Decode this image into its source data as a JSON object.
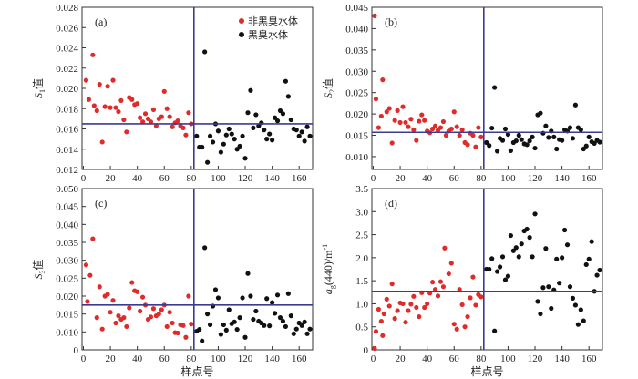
{
  "legend": {
    "red_label": "非黑臭水体",
    "black_label": "黑臭水体",
    "red_color": "#e02b2b",
    "black_color": "#111111",
    "placement": "top-right of panel (a)"
  },
  "colors": {
    "reference_line": "#3b3b8f",
    "axis": "#333333"
  },
  "chart_data": [
    {
      "type": "scatter",
      "panel_label": "(a)",
      "ylabel": {
        "base": "S",
        "sub": "1",
        "suffix": "值"
      },
      "xlabel": "",
      "xlim": [
        -1,
        170
      ],
      "ylim": [
        0.012,
        0.028
      ],
      "xticks": [
        0,
        20,
        40,
        60,
        80,
        100,
        120,
        140,
        160
      ],
      "yticks": [
        0.012,
        0.014,
        0.016,
        0.018,
        0.02,
        0.022,
        0.024,
        0.026,
        0.028
      ],
      "ytick_labels": [
        "0.012",
        "0.014",
        "0.016",
        "0.018",
        "0.020",
        "0.022",
        "0.024",
        "0.026",
        "0.028"
      ],
      "vline": 82,
      "hline": 0.0165,
      "series": [
        {
          "name": "非黑臭水体",
          "color": "#e02b2b",
          "x": [
            2,
            4,
            7,
            8,
            10,
            12,
            14,
            16,
            18,
            20,
            22,
            24,
            26,
            28,
            30,
            32,
            34,
            36,
            38,
            40,
            42,
            44,
            46,
            48,
            50,
            52,
            54,
            56,
            58,
            60,
            62,
            64,
            66,
            68,
            70,
            72,
            74,
            76,
            78,
            80
          ],
          "y": [
            0.0208,
            0.0189,
            0.0233,
            0.0183,
            0.0178,
            0.0204,
            0.0147,
            0.0182,
            0.0202,
            0.0181,
            0.0208,
            0.0181,
            0.0177,
            0.0188,
            0.0169,
            0.0157,
            0.0191,
            0.0189,
            0.0184,
            0.0185,
            0.0171,
            0.0167,
            0.0175,
            0.017,
            0.0167,
            0.0179,
            0.0163,
            0.017,
            0.0172,
            0.0197,
            0.018,
            0.0172,
            0.0162,
            0.0166,
            0.0168,
            0.0163,
            0.0161,
            0.0154,
            0.0176,
            0.0165
          ]
        },
        {
          "name": "黑臭水体",
          "color": "#111111",
          "x": [
            84,
            86,
            88,
            90,
            92,
            94,
            96,
            98,
            100,
            102,
            104,
            106,
            108,
            110,
            112,
            114,
            116,
            118,
            120,
            122,
            124,
            126,
            128,
            130,
            132,
            134,
            136,
            138,
            140,
            142,
            144,
            146,
            148,
            150,
            152,
            154,
            156,
            158,
            160,
            162,
            164,
            166,
            168
          ],
          "y": [
            0.0153,
            0.0142,
            0.0142,
            0.0236,
            0.0127,
            0.0153,
            0.0147,
            0.0165,
            0.0158,
            0.0137,
            0.0145,
            0.0154,
            0.016,
            0.0155,
            0.015,
            0.014,
            0.0143,
            0.0153,
            0.0131,
            0.0176,
            0.0198,
            0.0161,
            0.0174,
            0.0163,
            0.0166,
            0.0159,
            0.015,
            0.0155,
            0.0149,
            0.0171,
            0.0168,
            0.0178,
            0.0175,
            0.0207,
            0.0192,
            0.0169,
            0.016,
            0.0159,
            0.0153,
            0.0157,
            0.0148,
            0.0162,
            0.0153
          ]
        }
      ]
    },
    {
      "type": "scatter",
      "panel_label": "(b)",
      "ylabel": {
        "base": "S",
        "sub": "2",
        "suffix": "值"
      },
      "xlabel": "",
      "xlim": [
        -1,
        170
      ],
      "ylim": [
        0.007,
        0.045
      ],
      "xticks": [
        0,
        20,
        40,
        60,
        80,
        100,
        120,
        140,
        160
      ],
      "yticks": [
        0.01,
        0.015,
        0.02,
        0.025,
        0.03,
        0.035,
        0.04,
        0.045
      ],
      "ytick_labels": [
        "0.010",
        "0.015",
        "0.020",
        "0.025",
        "0.030",
        "0.035",
        "0.040",
        "0.045"
      ],
      "vline": 82,
      "hline": 0.0157,
      "series": [
        {
          "name": "非黑臭水体",
          "color": "#e02b2b",
          "x": [
            1,
            2,
            4,
            6,
            7,
            10,
            12,
            14,
            16,
            18,
            20,
            22,
            24,
            26,
            28,
            30,
            32,
            34,
            36,
            38,
            40,
            42,
            44,
            46,
            48,
            50,
            52,
            54,
            56,
            58,
            60,
            62,
            64,
            66,
            68,
            70,
            72,
            74,
            76,
            78,
            80
          ],
          "y": [
            0.043,
            0.0235,
            0.0168,
            0.0195,
            0.028,
            0.0205,
            0.0213,
            0.0132,
            0.0185,
            0.0208,
            0.018,
            0.0217,
            0.018,
            0.017,
            0.0188,
            0.0163,
            0.0138,
            0.0183,
            0.0198,
            0.0185,
            0.016,
            0.0156,
            0.0165,
            0.0172,
            0.0162,
            0.0168,
            0.0182,
            0.015,
            0.016,
            0.0165,
            0.0205,
            0.017,
            0.015,
            0.0163,
            0.0133,
            0.0128,
            0.0155,
            0.015,
            0.0123,
            0.0168,
            0.0146
          ]
        },
        {
          "name": "黑臭水体",
          "color": "#111111",
          "x": [
            84,
            86,
            88,
            90,
            92,
            94,
            96,
            98,
            100,
            102,
            104,
            106,
            108,
            110,
            112,
            114,
            116,
            118,
            120,
            122,
            124,
            126,
            128,
            130,
            132,
            134,
            136,
            138,
            140,
            142,
            144,
            146,
            148,
            150,
            152,
            154,
            156,
            158,
            160,
            162,
            164,
            166,
            168
          ],
          "y": [
            0.0133,
            0.0126,
            0.0167,
            0.0262,
            0.0113,
            0.0143,
            0.0138,
            0.0165,
            0.0152,
            0.0114,
            0.0133,
            0.0137,
            0.015,
            0.014,
            0.013,
            0.0128,
            0.0137,
            0.0146,
            0.012,
            0.0198,
            0.0202,
            0.0155,
            0.0172,
            0.0145,
            0.016,
            0.0146,
            0.0118,
            0.014,
            0.0138,
            0.0163,
            0.016,
            0.0168,
            0.0143,
            0.0221,
            0.0168,
            0.0163,
            0.0118,
            0.0125,
            0.0146,
            0.0135,
            0.0131,
            0.0138,
            0.0134
          ]
        }
      ]
    },
    {
      "type": "scatter",
      "panel_label": "(c)",
      "ylabel": {
        "base": "S",
        "sub": "3",
        "suffix": "值"
      },
      "xlabel": "样点号",
      "xlim": [
        -1,
        170
      ],
      "ylim": [
        0.005,
        0.05
      ],
      "xticks": [
        0,
        20,
        40,
        60,
        80,
        100,
        120,
        140,
        160
      ],
      "yticks": [
        0.005,
        0.01,
        0.015,
        0.02,
        0.025,
        0.03,
        0.035,
        0.04,
        0.045,
        0.05
      ],
      "ytick_labels": [
        "0",
        "0.010",
        "0.015",
        "0.020",
        "0.025",
        "0.030",
        "0.035",
        "0.040",
        "0.045",
        "0.050"
      ],
      "vline": 82,
      "hline": 0.0175,
      "series": [
        {
          "name": "非黑臭水体",
          "color": "#e02b2b",
          "x": [
            2,
            3,
            5,
            7,
            10,
            12,
            14,
            16,
            18,
            20,
            22,
            24,
            26,
            28,
            30,
            32,
            34,
            36,
            38,
            40,
            42,
            44,
            46,
            48,
            50,
            52,
            54,
            56,
            58,
            60,
            62,
            64,
            66,
            68,
            70,
            72,
            74,
            76,
            78,
            80
          ],
          "y": [
            0.0287,
            0.0185,
            0.0258,
            0.036,
            0.014,
            0.0226,
            0.0108,
            0.02,
            0.0205,
            0.0155,
            0.0188,
            0.0125,
            0.0145,
            0.0135,
            0.014,
            0.0115,
            0.0167,
            0.0238,
            0.0215,
            0.0212,
            0.0158,
            0.0197,
            0.0175,
            0.0135,
            0.0142,
            0.0165,
            0.0145,
            0.015,
            0.0162,
            0.0175,
            0.0115,
            0.0155,
            0.0125,
            0.0098,
            0.0097,
            0.012,
            0.0118,
            0.0085,
            0.02,
            0.0122
          ]
        },
        {
          "name": "黑臭水体",
          "color": "#111111",
          "x": [
            84,
            86,
            88,
            90,
            92,
            94,
            96,
            98,
            100,
            102,
            104,
            106,
            108,
            110,
            112,
            114,
            116,
            118,
            120,
            122,
            124,
            126,
            128,
            130,
            132,
            134,
            136,
            138,
            140,
            142,
            144,
            146,
            148,
            150,
            152,
            154,
            156,
            158,
            160,
            162,
            164,
            166,
            168
          ],
          "y": [
            0.0102,
            0.0107,
            0.0075,
            0.0335,
            0.015,
            0.012,
            0.0172,
            0.0218,
            0.0195,
            0.0093,
            0.012,
            0.0105,
            0.0162,
            0.0123,
            0.0128,
            0.0107,
            0.014,
            0.0195,
            0.0085,
            0.0263,
            0.02,
            0.0135,
            0.0158,
            0.013,
            0.0125,
            0.0118,
            0.0193,
            0.0117,
            0.0182,
            0.0152,
            0.0203,
            0.014,
            0.013,
            0.0115,
            0.0207,
            0.0145,
            0.0095,
            0.0108,
            0.0125,
            0.0118,
            0.0128,
            0.0095,
            0.0108
          ]
        }
      ]
    },
    {
      "type": "scatter",
      "panel_label": "(d)",
      "ylabel": {
        "base": "a",
        "sub": "g",
        "suffix": "(440)/m",
        "sup": "-1"
      },
      "xlabel": "样点号",
      "xlim": [
        -1,
        170
      ],
      "ylim": [
        0,
        3.5
      ],
      "xticks": [
        0,
        20,
        40,
        60,
        80,
        100,
        120,
        140,
        160
      ],
      "yticks": [
        0,
        0.5,
        1.0,
        1.5,
        2.0,
        2.5,
        3.0,
        3.5
      ],
      "ytick_labels": [
        "0",
        "0.5",
        "1.0",
        "1.5",
        "2.0",
        "2.5",
        "3.0",
        "3.5"
      ],
      "vline": 82,
      "hline": 1.27,
      "series": [
        {
          "name": "非黑臭水体",
          "color": "#e02b2b",
          "x": [
            1,
            2,
            4,
            6,
            7,
            8,
            10,
            12,
            14,
            16,
            18,
            20,
            22,
            24,
            26,
            28,
            30,
            32,
            34,
            36,
            38,
            40,
            42,
            44,
            46,
            48,
            50,
            52,
            53,
            56,
            58,
            60,
            62,
            64,
            66,
            68,
            70,
            72,
            74,
            76,
            78,
            80
          ],
          "y": [
            0.03,
            0.4,
            0.88,
            0.62,
            0.31,
            0.78,
            1.1,
            0.95,
            1.43,
            0.68,
            0.85,
            1.02,
            1.0,
            0.6,
            0.85,
            0.99,
            1.16,
            0.92,
            0.72,
            1.24,
            0.92,
            1.0,
            1.23,
            1.47,
            1.31,
            1.17,
            1.48,
            1.37,
            2.21,
            1.65,
            1.88,
            0.56,
            0.45,
            1.31,
            0.98,
            0.5,
            0.72,
            1.13,
            1.58,
            0.97,
            1.2,
            1.15
          ]
        },
        {
          "name": "黑臭水体",
          "color": "#111111",
          "x": [
            84,
            86,
            88,
            90,
            92,
            94,
            96,
            98,
            100,
            102,
            104,
            106,
            108,
            110,
            112,
            114,
            116,
            118,
            120,
            122,
            124,
            126,
            128,
            130,
            132,
            134,
            136,
            138,
            140,
            142,
            144,
            146,
            148,
            150,
            152,
            154,
            156,
            158,
            160,
            162,
            164,
            166,
            168
          ],
          "y": [
            1.75,
            1.75,
            1.98,
            0.41,
            1.7,
            1.8,
            2.02,
            1.52,
            1.6,
            2.48,
            2.15,
            2.22,
            2.02,
            2.3,
            2.58,
            2.62,
            2.44,
            2.02,
            2.95,
            1.05,
            0.78,
            1.35,
            2.2,
            1.37,
            0.9,
            1.3,
            1.97,
            1.45,
            2.0,
            2.6,
            2.28,
            1.37,
            1.12,
            0.97,
            0.55,
            0.87,
            0.63,
            1.85,
            1.97,
            2.35,
            1.27,
            1.62,
            1.73
          ]
        }
      ]
    }
  ]
}
